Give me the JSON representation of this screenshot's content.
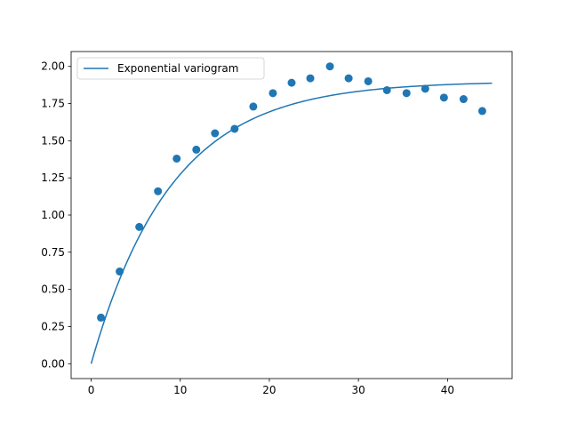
{
  "chart_data": {
    "type": "line+scatter",
    "title": "",
    "xlabel": "",
    "ylabel": "",
    "xlim": [
      -2.25,
      47.25
    ],
    "ylim": [
      -0.1,
      2.1
    ],
    "grid": false,
    "legend": {
      "position": "upper-left"
    },
    "x_ticks": [
      0,
      10,
      20,
      30,
      40
    ],
    "x_tick_labels": [
      "0",
      "10",
      "20",
      "30",
      "40"
    ],
    "y_ticks": [
      0.0,
      0.25,
      0.5,
      0.75,
      1.0,
      1.25,
      1.5,
      1.75,
      2.0
    ],
    "y_tick_labels": [
      "0.00",
      "0.25",
      "0.50",
      "0.75",
      "1.00",
      "1.25",
      "1.50",
      "1.75",
      "2.00"
    ],
    "series": [
      {
        "name": "Exponential variogram",
        "kind": "line",
        "color": "#1f77b4",
        "model": {
          "nugget": 0,
          "sill": 1.9,
          "range": 9.0,
          "x_max": 45
        }
      },
      {
        "kind": "scatter",
        "color": "#1f77b4",
        "x": [
          1.1,
          3.2,
          5.4,
          7.5,
          9.6,
          11.8,
          13.9,
          16.1,
          18.2,
          20.4,
          22.5,
          24.6,
          26.8,
          28.9,
          31.1,
          33.2,
          35.4,
          37.5,
          39.6,
          41.8,
          43.9
        ],
        "y": [
          0.31,
          0.62,
          0.92,
          1.16,
          1.38,
          1.44,
          1.55,
          1.58,
          1.73,
          1.82,
          1.89,
          1.92,
          2.0,
          1.92,
          1.9,
          1.84,
          1.82,
          1.85,
          1.79,
          1.78,
          1.7
        ]
      }
    ]
  }
}
